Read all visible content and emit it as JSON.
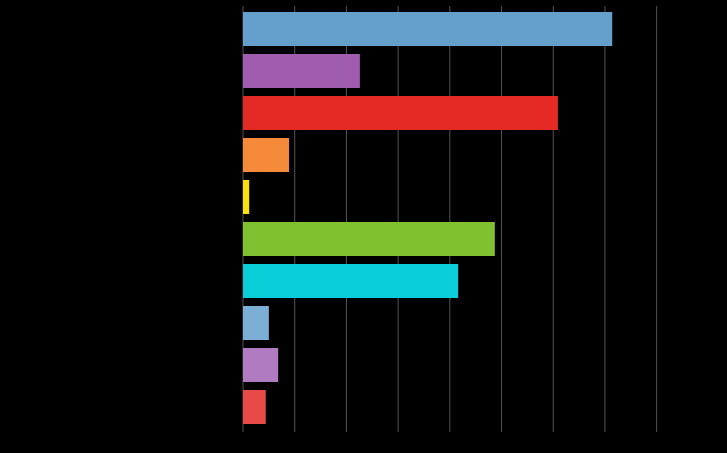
{
  "chart_data": {
    "type": "hbar",
    "categories": [
      null,
      null,
      null,
      null,
      null,
      null,
      null,
      null,
      null,
      null
    ],
    "values": [
      7.14,
      2.26,
      6.09,
      0.89,
      0.12,
      4.87,
      4.16,
      0.5,
      0.68,
      0.44
    ],
    "colors": [
      "#659fcb",
      "#a05db0",
      "#e52a25",
      "#f48a3a",
      "#fce00b",
      "#80c12f",
      "#0acfd8",
      "#7cafd6",
      "#b07bc0",
      "#e84a47"
    ],
    "xlim": [
      0,
      9.36
    ],
    "xticks": [
      0,
      1,
      2,
      3,
      4,
      5,
      6,
      7,
      8
    ],
    "grid": true
  }
}
